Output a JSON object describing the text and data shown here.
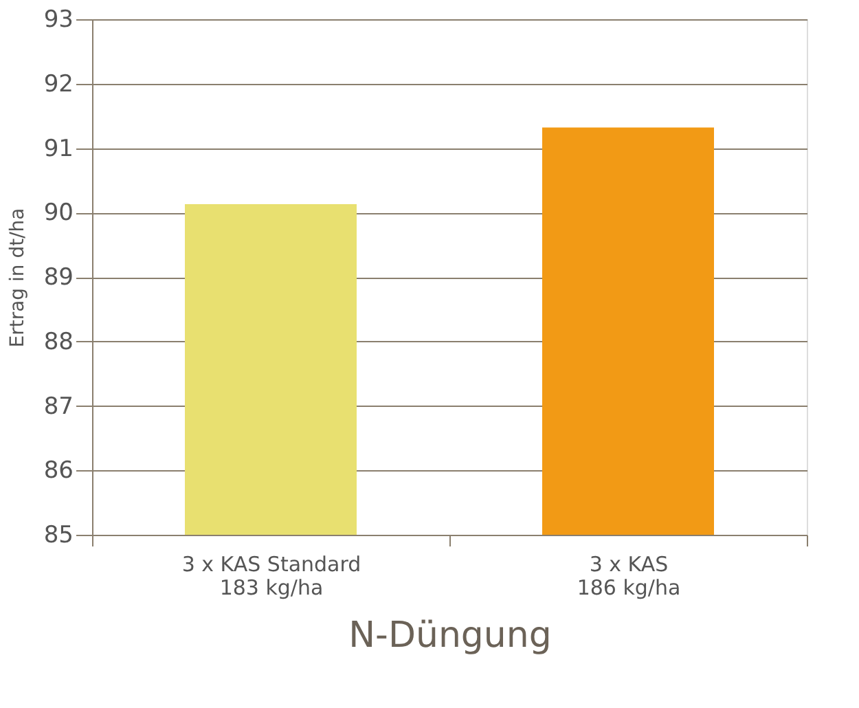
{
  "chart_data": {
    "type": "bar",
    "categories": [
      "3 x KAS Standard\n183 kg/ha",
      "3 x KAS\n186 kg/ha"
    ],
    "values": [
      90.13,
      91.32
    ],
    "colors": [
      "#e8e070",
      "#f29a15"
    ],
    "xlabel": "N-Düngung",
    "ylabel": "Ertrag in dt/ha",
    "ylim": [
      85,
      93
    ],
    "yticks": [
      85,
      86,
      87,
      88,
      89,
      90,
      91,
      92,
      93
    ],
    "grid": "y"
  }
}
